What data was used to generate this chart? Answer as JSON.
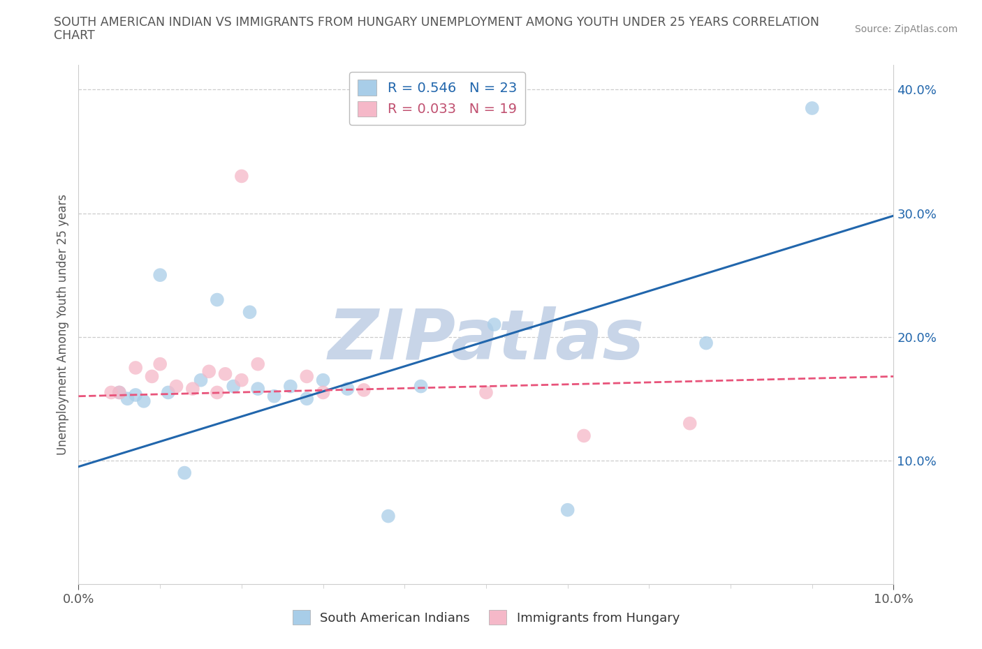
{
  "title_line1": "SOUTH AMERICAN INDIAN VS IMMIGRANTS FROM HUNGARY UNEMPLOYMENT AMONG YOUTH UNDER 25 YEARS CORRELATION",
  "title_line2": "CHART",
  "source": "Source: ZipAtlas.com",
  "ylabel": "Unemployment Among Youth under 25 years",
  "xlim": [
    0.0,
    0.1
  ],
  "ylim": [
    0.0,
    0.42
  ],
  "yticks": [
    0.1,
    0.2,
    0.3,
    0.4
  ],
  "xticks": [
    0.0,
    0.1
  ],
  "blue_points": [
    [
      0.005,
      0.155
    ],
    [
      0.006,
      0.15
    ],
    [
      0.007,
      0.153
    ],
    [
      0.008,
      0.148
    ],
    [
      0.01,
      0.25
    ],
    [
      0.011,
      0.155
    ],
    [
      0.013,
      0.09
    ],
    [
      0.015,
      0.165
    ],
    [
      0.017,
      0.23
    ],
    [
      0.019,
      0.16
    ],
    [
      0.021,
      0.22
    ],
    [
      0.022,
      0.158
    ],
    [
      0.024,
      0.152
    ],
    [
      0.026,
      0.16
    ],
    [
      0.028,
      0.15
    ],
    [
      0.03,
      0.165
    ],
    [
      0.033,
      0.158
    ],
    [
      0.038,
      0.055
    ],
    [
      0.042,
      0.16
    ],
    [
      0.051,
      0.21
    ],
    [
      0.06,
      0.06
    ],
    [
      0.077,
      0.195
    ],
    [
      0.09,
      0.385
    ]
  ],
  "pink_points": [
    [
      0.004,
      0.155
    ],
    [
      0.005,
      0.155
    ],
    [
      0.007,
      0.175
    ],
    [
      0.009,
      0.168
    ],
    [
      0.01,
      0.178
    ],
    [
      0.012,
      0.16
    ],
    [
      0.014,
      0.158
    ],
    [
      0.016,
      0.172
    ],
    [
      0.017,
      0.155
    ],
    [
      0.018,
      0.17
    ],
    [
      0.02,
      0.165
    ],
    [
      0.022,
      0.178
    ],
    [
      0.028,
      0.168
    ],
    [
      0.03,
      0.155
    ],
    [
      0.035,
      0.157
    ],
    [
      0.05,
      0.155
    ],
    [
      0.062,
      0.12
    ],
    [
      0.075,
      0.13
    ],
    [
      0.02,
      0.33
    ]
  ],
  "blue_R": "0.546",
  "blue_N": "23",
  "pink_R": "0.033",
  "pink_N": "19",
  "blue_line_x": [
    0.0,
    0.1
  ],
  "blue_line_y": [
    0.095,
    0.298
  ],
  "pink_line_x": [
    0.0,
    0.1
  ],
  "pink_line_y": [
    0.152,
    0.168
  ],
  "blue_scatter_color": "#a8cde8",
  "pink_scatter_color": "#f5b8c8",
  "blue_line_color": "#2166ac",
  "pink_line_color": "#e8537a",
  "watermark": "ZIPatlas",
  "watermark_color": "#c8d5e8",
  "background_color": "#ffffff",
  "grid_color": "#cccccc",
  "title_color": "#555555",
  "label_color": "#555555",
  "tick_color": "#2166ac",
  "legend_text_blue_color": "#2166ac",
  "legend_text_pink_color": "#c05070"
}
